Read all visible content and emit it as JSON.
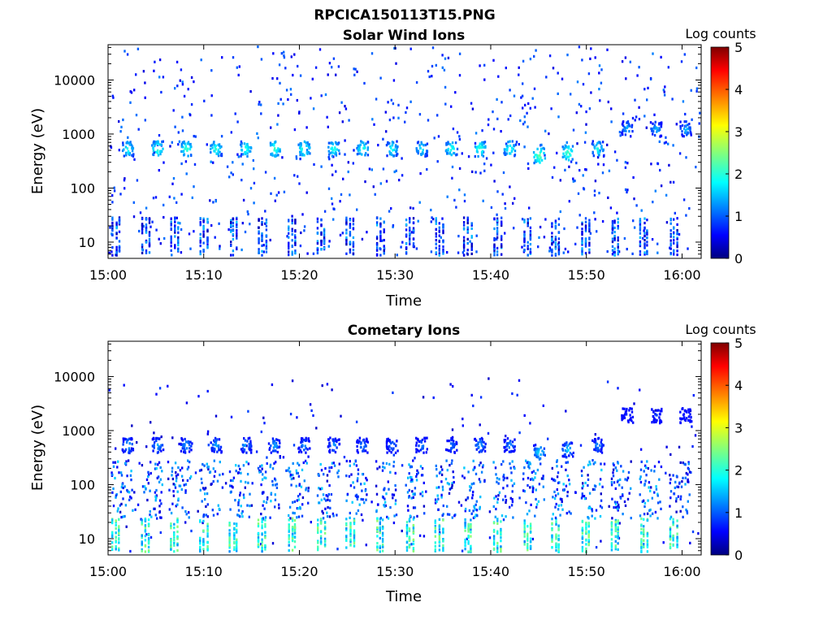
{
  "figure": {
    "title": "RPCICA150113T15.PNG"
  },
  "colormap": {
    "name": "jet",
    "stops": [
      "#00007f",
      "#0000ff",
      "#00ffff",
      "#ffff00",
      "#ff0000",
      "#7f0000"
    ]
  },
  "chart_data": [
    {
      "type": "heatmap",
      "title": "Solar Wind Ions",
      "xlabel": "Time",
      "ylabel": "Energy (eV)",
      "y_scale": "log",
      "xlim": [
        "15:00",
        "16:02"
      ],
      "ylim": [
        5,
        45000
      ],
      "x_ticks": [
        "15:00",
        "15:10",
        "15:20",
        "15:30",
        "15:40",
        "15:50",
        "16:00"
      ],
      "y_ticks": [
        "10",
        "100",
        "1000",
        "10000"
      ],
      "colorbar": {
        "label": "Log counts",
        "range": [
          0,
          5
        ],
        "ticks": [
          "0",
          "1",
          "2",
          "3",
          "4",
          "5"
        ]
      },
      "sweep_start_minutes": [
        0.3,
        3.4,
        6.4,
        9.5,
        12.6,
        15.6,
        18.7,
        21.8,
        24.8,
        27.9,
        31.0,
        34.1,
        37.1,
        40.2,
        43.3,
        46.3,
        49.4,
        52.5,
        55.5,
        58.6
      ],
      "main_beam": {
        "energies_eV": [
          560,
          560,
          560,
          560,
          560,
          560,
          560,
          560,
          560,
          560,
          560,
          560,
          560,
          560,
          420,
          470,
          560,
          1300,
          1300,
          1300
        ],
        "peak_log_counts": [
          2.0,
          2.2,
          2.2,
          2.1,
          2.1,
          2.2,
          2.2,
          2.1,
          2.1,
          2.0,
          1.9,
          2.1,
          2.2,
          2.1,
          2.4,
          2.3,
          2.0,
          1.6,
          1.6,
          1.6
        ]
      },
      "low_energy_band": {
        "energy_range_eV": [
          6,
          30
        ],
        "log_counts": [
          0.2,
          1.5
        ]
      },
      "background": {
        "energy_range_eV": [
          6,
          45000
        ],
        "log_counts": [
          0.4,
          1.2
        ]
      }
    },
    {
      "type": "heatmap",
      "title": "Cometary Ions",
      "xlabel": "Time",
      "ylabel": "Energy (eV)",
      "y_scale": "log",
      "xlim": [
        "15:00",
        "16:02"
      ],
      "ylim": [
        5,
        45000
      ],
      "x_ticks": [
        "15:00",
        "15:10",
        "15:20",
        "15:30",
        "15:40",
        "15:50",
        "16:00"
      ],
      "y_ticks": [
        "10",
        "100",
        "1000",
        "10000"
      ],
      "colorbar": {
        "label": "Log counts",
        "range": [
          0,
          5
        ],
        "ticks": [
          "0",
          "1",
          "2",
          "3",
          "4",
          "5"
        ]
      },
      "sweep_start_minutes": [
        0.3,
        3.4,
        6.4,
        9.5,
        12.6,
        15.6,
        18.7,
        21.8,
        24.8,
        27.9,
        31.0,
        34.1,
        37.1,
        40.2,
        43.3,
        46.3,
        49.4,
        52.5,
        55.5,
        58.6
      ],
      "main_beam": {
        "energies_eV": [
          560,
          560,
          560,
          560,
          560,
          560,
          560,
          560,
          560,
          560,
          560,
          560,
          560,
          560,
          420,
          470,
          560,
          2000,
          2000,
          2000
        ],
        "peak_log_counts": [
          1.6,
          1.5,
          1.5,
          1.5,
          1.5,
          1.5,
          1.4,
          1.4,
          1.4,
          1.3,
          1.3,
          1.3,
          1.5,
          1.4,
          1.8,
          1.7,
          1.4,
          1.0,
          1.0,
          1.0
        ]
      },
      "low_energy_band": {
        "energy_range_eV": [
          6,
          25
        ],
        "log_counts": [
          1.2,
          2.6
        ]
      },
      "mid_energy_band": {
        "energy_range_eV": [
          25,
          300
        ],
        "log_counts": [
          0.3,
          1.6
        ]
      },
      "background": {
        "energy_range_eV": [
          6,
          10000
        ],
        "log_counts": [
          0.3,
          0.9
        ]
      }
    }
  ]
}
